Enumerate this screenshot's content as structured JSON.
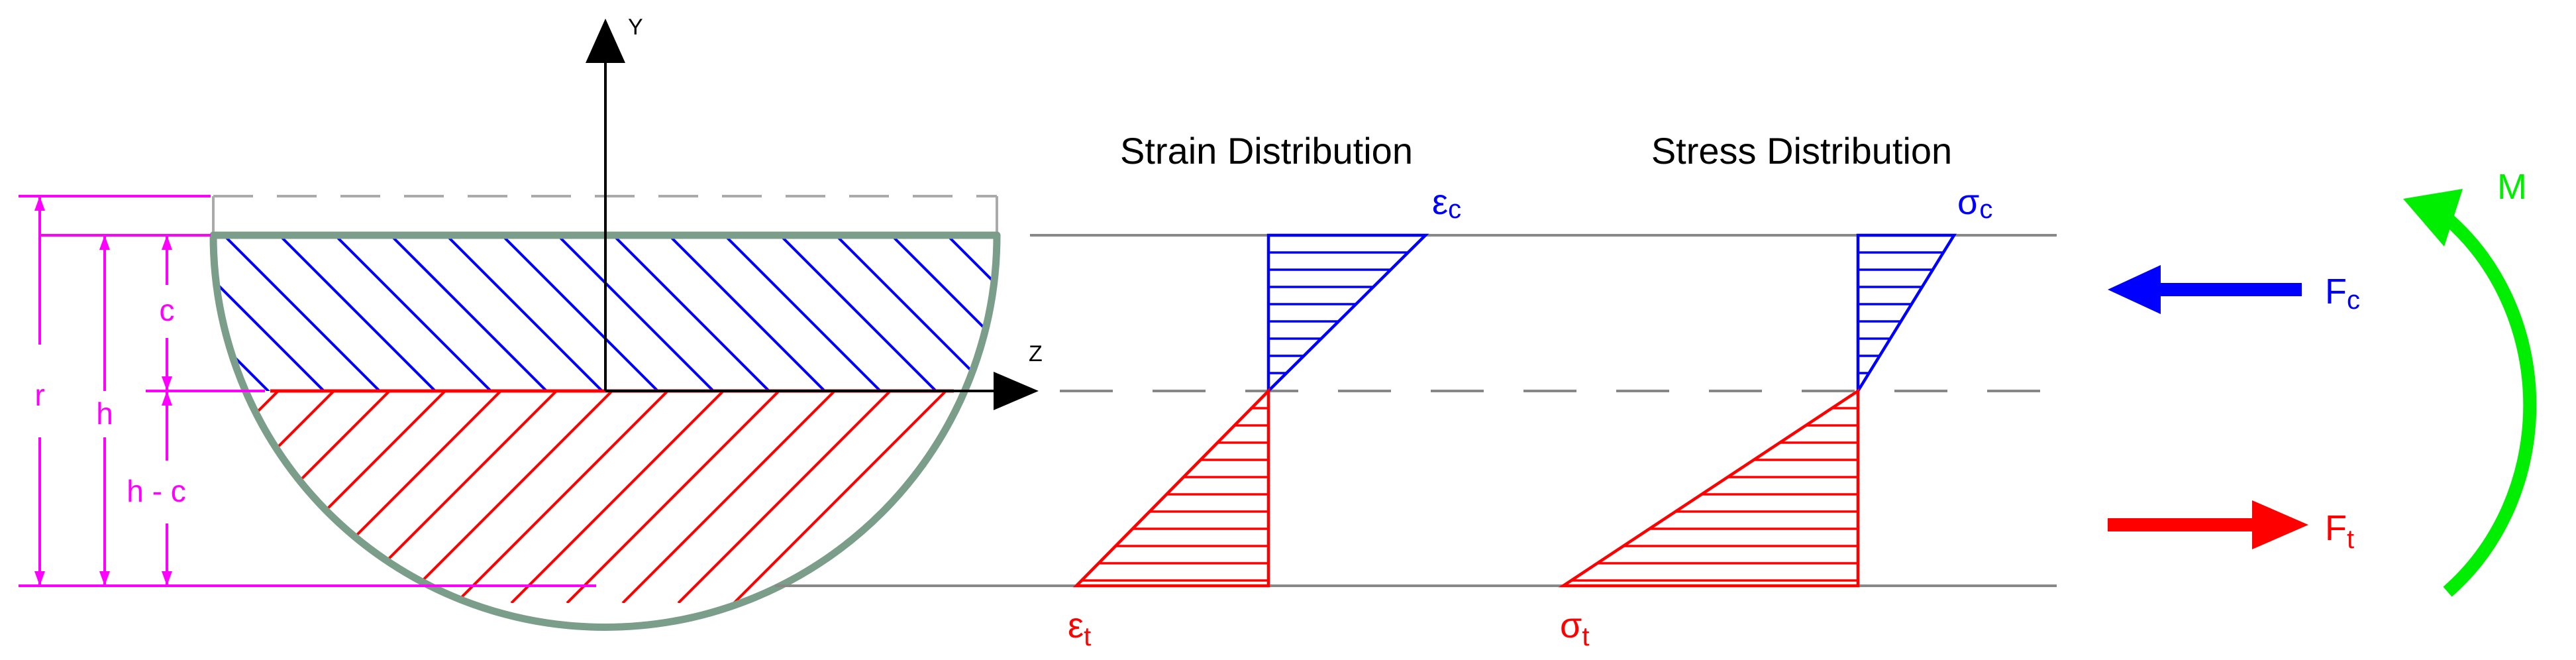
{
  "axes": {
    "y_label": "Y",
    "z_label": "Z"
  },
  "dimensions": {
    "r": "r",
    "h": "h",
    "c": "c",
    "h_minus_c": "h - c"
  },
  "strain": {
    "title": "Strain Distribution",
    "top_symbol": "ε",
    "top_sub": "c",
    "bottom_symbol": "ε",
    "bottom_sub": "t"
  },
  "stress": {
    "title": "Stress Distribution",
    "top_symbol": "σ",
    "top_sub": "c",
    "bottom_symbol": "σ",
    "bottom_sub": "t"
  },
  "forces": {
    "compression_symbol": "F",
    "compression_sub": "c",
    "tension_symbol": "F",
    "tension_sub": "t",
    "moment": "M"
  },
  "colors": {
    "compression": "#0000ff",
    "tension": "#ff0000",
    "dimension": "#ff00ff",
    "moment": "#00ee00",
    "section_outline": "#7a9e8a",
    "reference_line": "#888888",
    "axis": "#000000"
  }
}
